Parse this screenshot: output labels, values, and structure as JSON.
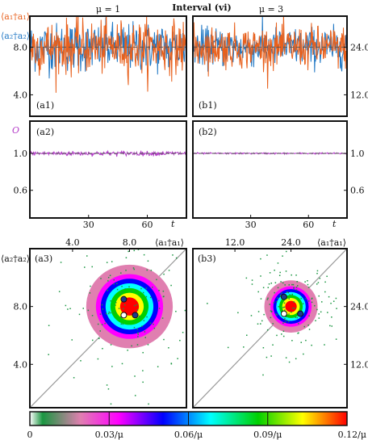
{
  "title": "Interval (vi)",
  "columns": [
    {
      "mu_label": "μ = 1"
    },
    {
      "mu_label": "μ = 3"
    }
  ],
  "series_labels": {
    "a1": "⟨a₁†a₁⟩",
    "a2": "⟨a₂†a₂⟩",
    "O": "O"
  },
  "axis_labels": {
    "t": "t"
  },
  "colors": {
    "a1": "#e8601c",
    "a2": "#1f77c4",
    "O": "#b43cc8",
    "mean_line": "#555555",
    "diag_line": "#9a9a9a"
  },
  "chart_data": [
    {
      "type": "line",
      "panel_label": "(a1)",
      "series": [
        {
          "name": "⟨a₁†a₁⟩",
          "mean": 8.0,
          "spread": 1.0
        },
        {
          "name": "⟨a₂†a₂⟩",
          "mean": 8.0,
          "spread": 1.1
        }
      ],
      "xlim": [
        0,
        80
      ],
      "ylim": [
        2.2,
        10.6
      ],
      "yticks": [
        4.0,
        8.0
      ],
      "ytick_labels": [
        "4.0",
        "8.0"
      ],
      "xticks": []
    },
    {
      "type": "line",
      "panel_label": "(b1)",
      "series": [
        {
          "name": "⟨a₁†a₁⟩",
          "mean": 24.0,
          "spread": 2.4
        },
        {
          "name": "⟨a₂†a₂⟩",
          "mean": 24.0,
          "spread": 2.6
        }
      ],
      "xlim": [
        0,
        80
      ],
      "ylim": [
        6.6,
        31.8
      ],
      "yticks": [
        12.0,
        24.0
      ],
      "ytick_labels": [
        "12.0",
        "24.0"
      ],
      "xticks": []
    },
    {
      "type": "line",
      "panel_label": "(a2)",
      "series": [
        {
          "name": "O",
          "mean": 1.0,
          "spread": 0.012
        }
      ],
      "xlim": [
        0,
        80
      ],
      "ylim": [
        0.3,
        1.35
      ],
      "yticks": [
        0.6,
        1.0
      ],
      "ytick_labels": [
        "0.6",
        "1.0"
      ],
      "xticks": [
        30,
        60
      ],
      "xtick_labels": [
        "30",
        "60"
      ]
    },
    {
      "type": "line",
      "panel_label": "(b2)",
      "series": [
        {
          "name": "O",
          "mean": 1.0,
          "spread": 0.004
        }
      ],
      "xlim": [
        0,
        80
      ],
      "ylim": [
        0.3,
        1.35
      ],
      "yticks": [
        0.6,
        1.0
      ],
      "ytick_labels": [
        "0.6",
        "1.0"
      ],
      "xticks": [
        30,
        60
      ],
      "xtick_labels": [
        "30",
        "60"
      ]
    },
    {
      "type": "heatmap",
      "panel_label": "(a3)",
      "xlim": [
        1.0,
        12.0
      ],
      "ylim": [
        1.0,
        12.0
      ],
      "ticks": [
        4.0,
        8.0
      ],
      "tick_labels": [
        "4.0",
        "8.0"
      ],
      "center": [
        8.0,
        8.0
      ],
      "width": 1.6,
      "markers": [
        {
          "x": 7.6,
          "y": 8.5,
          "fill": "#1f3a8a"
        },
        {
          "x": 8.4,
          "y": 7.4,
          "fill": "#1f3a8a"
        },
        {
          "x": 7.6,
          "y": 7.4,
          "fill": "#ffffff"
        }
      ]
    },
    {
      "type": "heatmap",
      "panel_label": "(b3)",
      "xlim": [
        3.0,
        36.0
      ],
      "ylim": [
        3.0,
        36.0
      ],
      "ticks": [
        12.0,
        24.0
      ],
      "tick_labels": [
        "12.0",
        "24.0"
      ],
      "center": [
        24.0,
        24.0
      ],
      "width": 3.0,
      "markers": [
        {
          "x": 22.5,
          "y": 26.0,
          "fill": "#1f3a8a"
        },
        {
          "x": 26.0,
          "y": 22.5,
          "fill": "#1f3a8a"
        },
        {
          "x": 22.5,
          "y": 22.5,
          "fill": "#ffffff"
        }
      ]
    },
    {
      "type": "colorbar",
      "range": [
        0,
        0.12
      ],
      "ticks": [
        0,
        0.03,
        0.06,
        0.09,
        0.12
      ],
      "tick_labels": [
        "0",
        "0.03/μ",
        "0.06/μ",
        "0.09/μ",
        "0.12/μ"
      ],
      "stops": [
        "#ffffff",
        "#1a9641",
        "#ff00ff",
        "#0000ff",
        "#00ffff",
        "#00cc00",
        "#ffff00",
        "#ff0000"
      ]
    }
  ]
}
